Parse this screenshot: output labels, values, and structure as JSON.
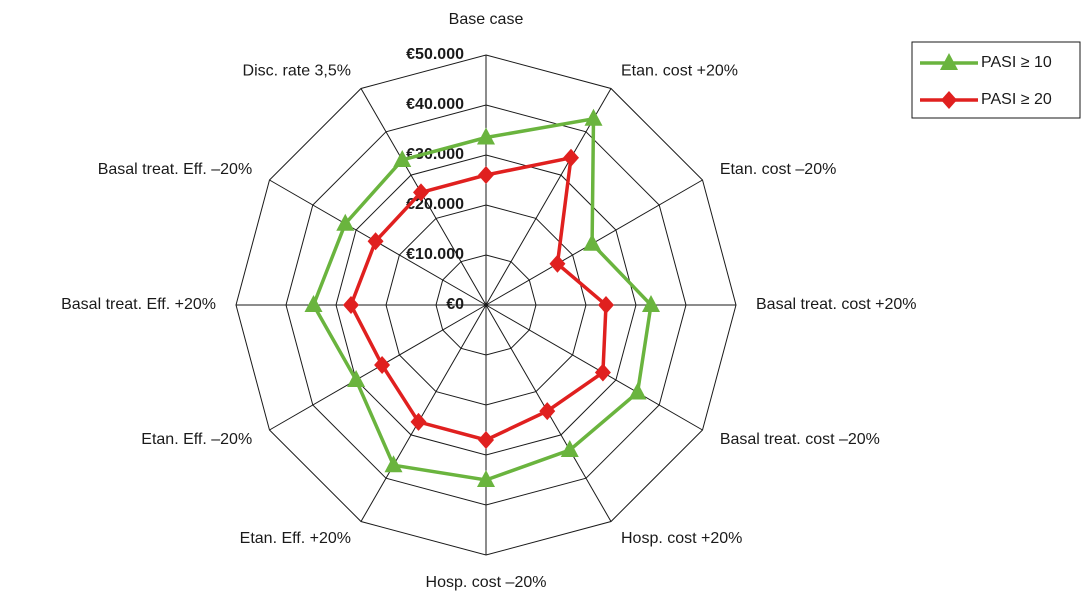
{
  "chart_data": {
    "type": "radar",
    "categories": [
      "Base case",
      "Etan. cost +20%",
      "Etan. cost –20%",
      "Basal treat. cost +20%",
      "Basal treat. cost –20%",
      "Hosp. cost +20%",
      "Hosp. cost –20%",
      "Etan. Eff. +20%",
      "Etan. Eff. –20%",
      "Basal treat. Eff. +20%",
      "Basal treat. Eff. –20%",
      "Disc. rate 3,5%"
    ],
    "series": [
      {
        "name": "PASI ≥ 10",
        "color": "#6ab43e",
        "marker": "triangle",
        "values": [
          33500,
          43000,
          24500,
          33000,
          35000,
          33500,
          35000,
          37000,
          30000,
          34500,
          32500,
          33500
        ]
      },
      {
        "name": "PASI ≥ 20",
        "color": "#e0201f",
        "marker": "diamond",
        "values": [
          26000,
          34000,
          16500,
          24000,
          27000,
          24500,
          27000,
          27000,
          24000,
          27000,
          25500,
          26000
        ]
      }
    ],
    "ylim": [
      0,
      50000
    ],
    "yticks": [
      {
        "value": 0,
        "label": "€0"
      },
      {
        "value": 10000,
        "label": "€10.000"
      },
      {
        "value": 20000,
        "label": "€20.000"
      },
      {
        "value": 30000,
        "label": "€30.000"
      },
      {
        "value": 40000,
        "label": "€40.000"
      },
      {
        "value": 50000,
        "label": "€50.000"
      }
    ],
    "legend": "top-right"
  }
}
